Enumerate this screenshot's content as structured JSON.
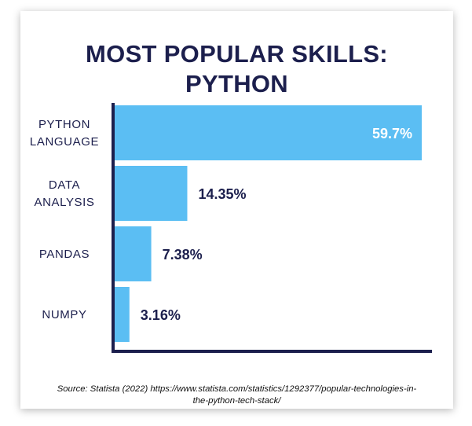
{
  "chart_data": {
    "type": "bar",
    "orientation": "horizontal",
    "title_lines": [
      "MOST POPULAR SKILLS:",
      "PYTHON"
    ],
    "categories": [
      [
        "PYTHON",
        "LANGUAGE"
      ],
      [
        "DATA",
        "ANALYSIS"
      ],
      [
        "PANDAS"
      ],
      [
        "NUMPY"
      ]
    ],
    "values": [
      59.7,
      14.35,
      7.38,
      3.16
    ],
    "value_labels": [
      "59.7%",
      "14.35%",
      "7.38%",
      "3.16%"
    ],
    "xlim": [
      0,
      59.7
    ],
    "grid": false,
    "bar_color": "#5bbef3",
    "axis_color": "#1c1f4d",
    "label_color": "#1c1f4d",
    "inside_label_color": "#ffffff"
  },
  "source_lines": [
    "Source: Statista (2022)  https://www.statista.com/statistics/1292377/popular-technologies-in-",
    "the-python-tech-stack/"
  ]
}
